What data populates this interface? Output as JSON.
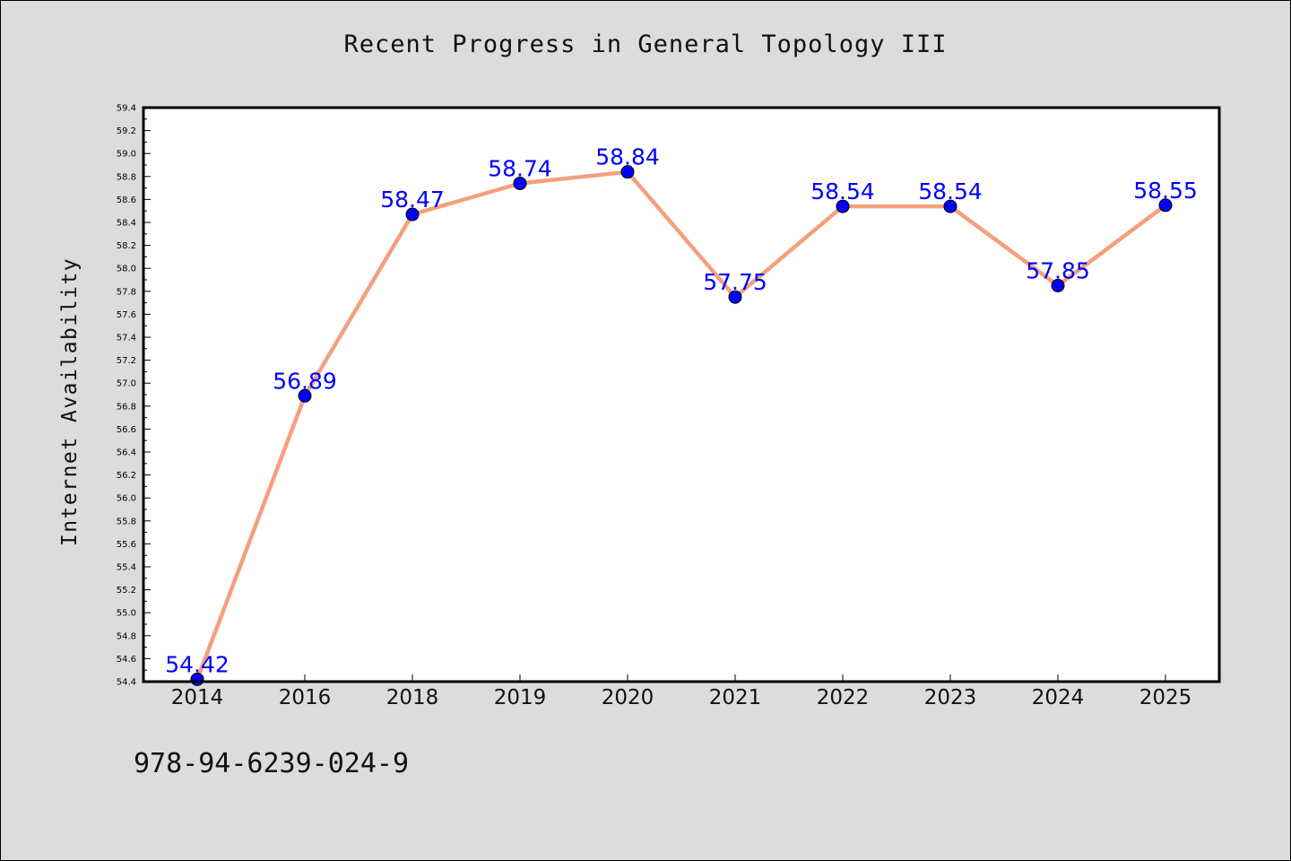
{
  "chart_data": {
    "type": "line",
    "title": "Recent Progress in General Topology III",
    "xlabel": "",
    "ylabel": "Internet Availability",
    "categories": [
      "2014",
      "2016",
      "2018",
      "2019",
      "2020",
      "2021",
      "2022",
      "2023",
      "2024",
      "2025"
    ],
    "values": [
      54.42,
      56.89,
      58.47,
      58.74,
      58.84,
      57.75,
      58.54,
      58.54,
      57.85,
      58.55
    ],
    "data_labels": [
      "54.42",
      "56.89",
      "58.47",
      "58.74",
      "58.84",
      "57.75",
      "58.54",
      "58.54",
      "57.85",
      "58.55"
    ],
    "ylim": [
      54.4,
      59.4
    ],
    "yticks": [
      "54.4",
      "54.6",
      "54.8",
      "55.0",
      "55.2",
      "55.4",
      "55.6",
      "55.8",
      "56.0",
      "56.2",
      "56.4",
      "56.6",
      "56.8",
      "57.0",
      "57.2",
      "57.4",
      "57.6",
      "57.8",
      "58.0",
      "58.2",
      "58.4",
      "58.6",
      "58.8",
      "59.0",
      "59.2",
      "59.4"
    ],
    "grid": false,
    "colors": {
      "line": "#f4a07c",
      "marker": "#0000ff",
      "label": "#0000ff",
      "plot_background": "#ffffff",
      "figure_background": "#dcdcdc"
    }
  },
  "footer": {
    "isbn": "978-94-6239-024-9"
  }
}
